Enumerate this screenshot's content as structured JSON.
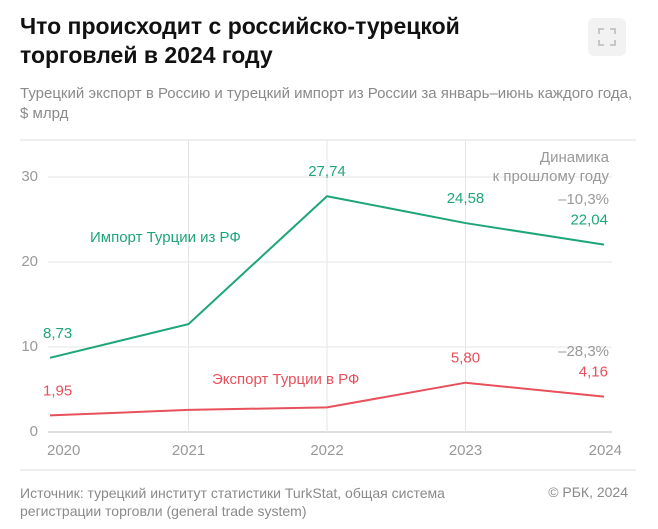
{
  "chart_data": {
    "type": "line",
    "title": "Что происходит с российско-турецкой торговлей в 2024 году",
    "subtitle": "Турецкий экспорт в Россию и турецкий импорт из России за январь–июнь каждого года, $ млрд",
    "categories": [
      "2020",
      "2021",
      "2022",
      "2023",
      "2024"
    ],
    "series": [
      {
        "name": "Импорт Турции из РФ",
        "color": "#1ea67a",
        "values": [
          8.73,
          12.7,
          27.74,
          24.58,
          22.04
        ],
        "value_labels": [
          "8,73",
          null,
          "27,74",
          "24,58",
          "22,04"
        ],
        "change": "–10,3%"
      },
      {
        "name": "Экспорт Турции в РФ",
        "color": "#e8505b",
        "values": [
          1.95,
          2.6,
          2.9,
          5.8,
          4.16
        ],
        "value_labels": [
          "1,95",
          null,
          null,
          "5,80",
          "4,16"
        ],
        "change": "–28,3%"
      }
    ],
    "annotations": [
      "Динамика",
      "к прошлому году"
    ],
    "ylim": [
      0,
      30
    ],
    "yticks": [
      0,
      10,
      20,
      30
    ],
    "grid": true,
    "source": "Источник: турецкий институт статистики TurkStat, общая система регистрации торговли (general trade system)",
    "credit": "© РБК, 2024"
  }
}
